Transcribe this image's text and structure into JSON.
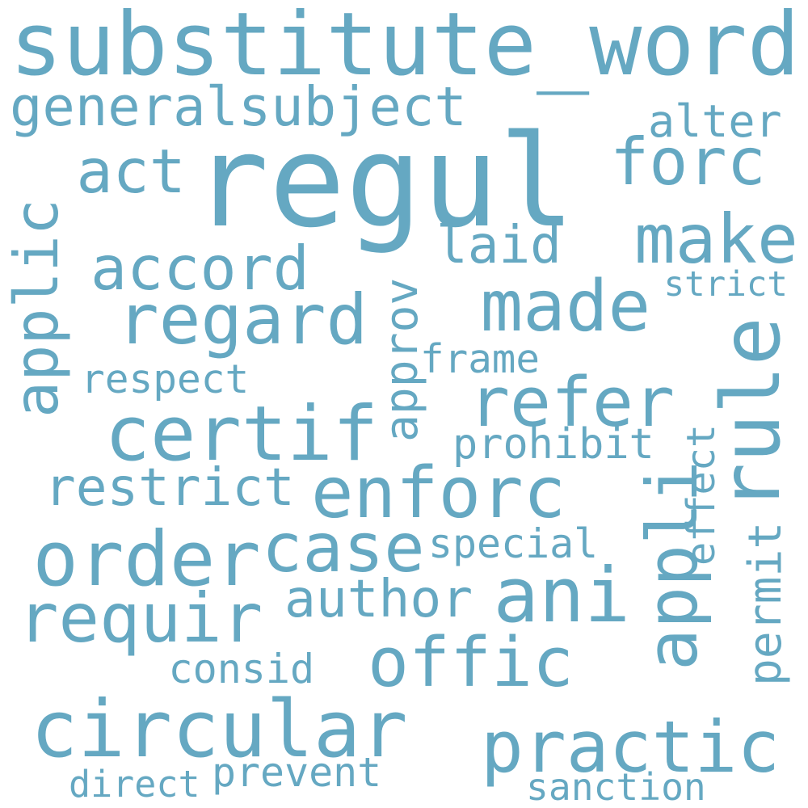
{
  "color": "#65a8c2",
  "words": [
    "substitute_word",
    "regul",
    "generalsubject",
    "alter",
    "act",
    "forc",
    "applic",
    "make",
    "accord",
    "laid",
    "strict",
    "made",
    "regard",
    "rule",
    "approv",
    "frame",
    "respect",
    "refer",
    "certif",
    "prohibit",
    "effect",
    "restrict",
    "enforc",
    "appli",
    "order",
    "case",
    "special",
    "permit",
    "ani",
    "requir",
    "author",
    "offic",
    "consid",
    "circular",
    "practic",
    "direct",
    "prevent",
    "sanction"
  ]
}
